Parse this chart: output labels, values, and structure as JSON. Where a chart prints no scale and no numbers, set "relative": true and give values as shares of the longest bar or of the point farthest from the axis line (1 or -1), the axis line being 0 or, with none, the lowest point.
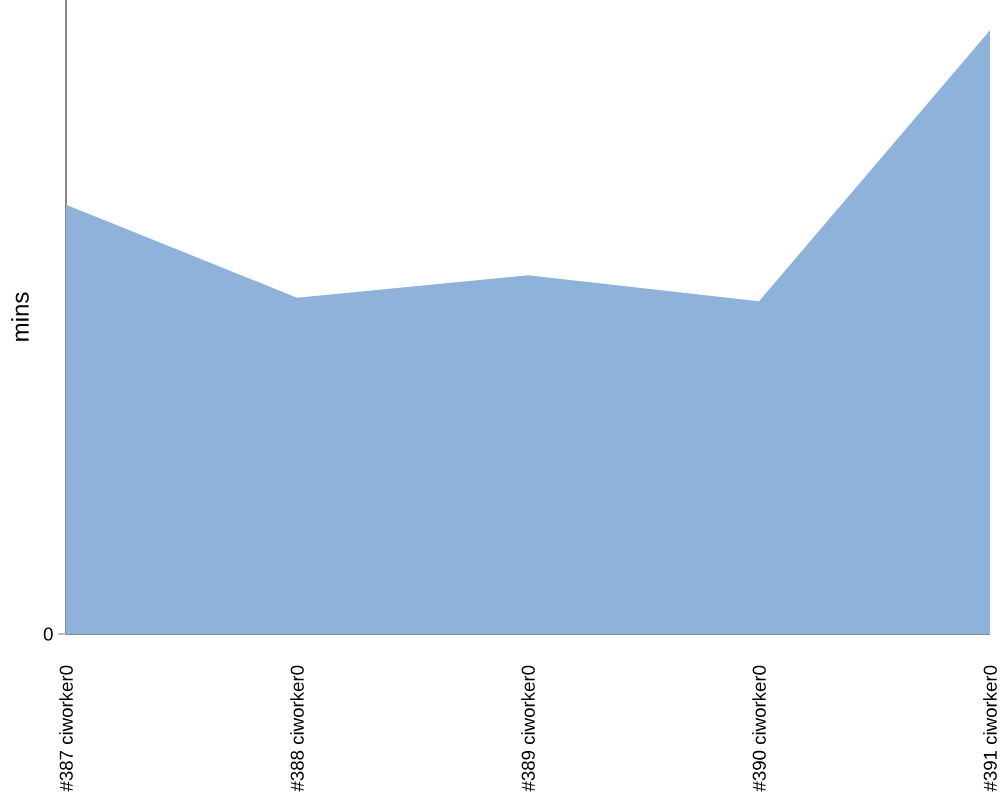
{
  "chart_data": {
    "type": "area",
    "ylabel": "mins",
    "categories": [
      "#387 ciworker0",
      "#388 ciworker0",
      "#389 ciworker0",
      "#390 ciworker0",
      "#391 ciworker0"
    ],
    "values": [
      0.711,
      0.557,
      0.594,
      0.551,
      1
    ],
    "color": "#8fb2da",
    "relative": true,
    "annotations": [
      "0"
    ]
  }
}
